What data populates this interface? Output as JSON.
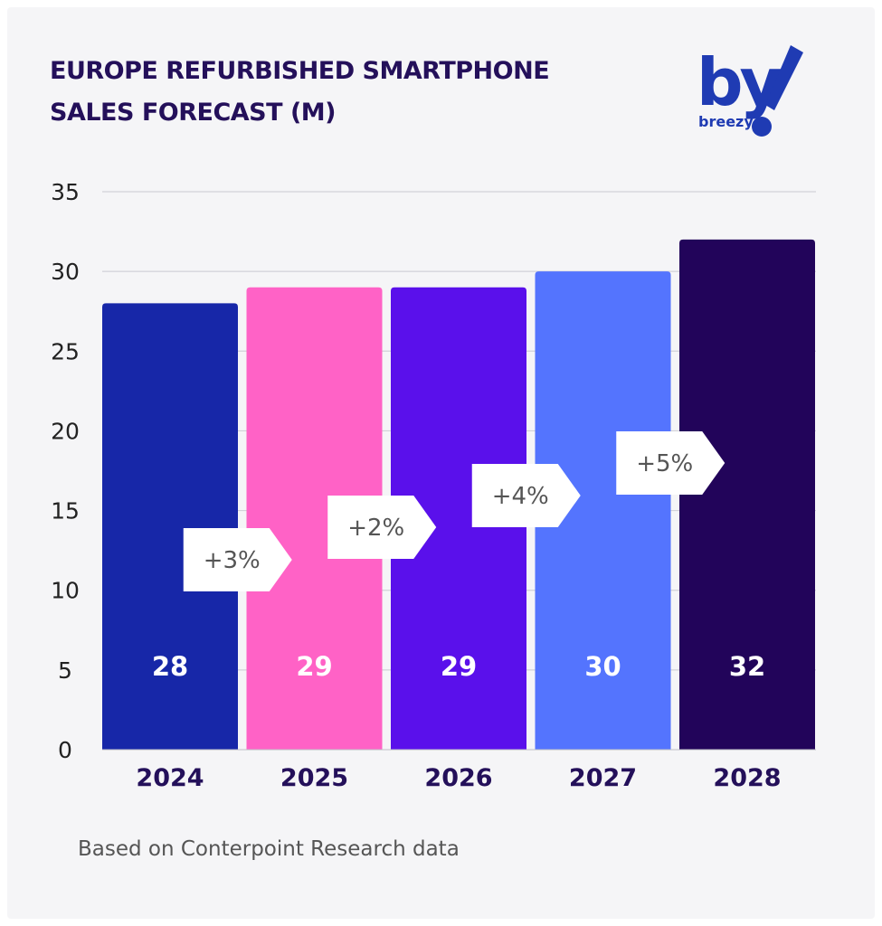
{
  "title_lines": [
    "EUROPE REFURBISHED SMARTPHONE",
    "SALES FORECAST (M)"
  ],
  "logo": {
    "mark": "by",
    "wordmark": "breezy",
    "color": "#1f3bb3"
  },
  "footnote": "Based on Conterpoint Research data",
  "chart_data": {
    "type": "bar",
    "categories": [
      "2024",
      "2025",
      "2026",
      "2027",
      "2028"
    ],
    "values": [
      28,
      29,
      29,
      30,
      32
    ],
    "data_labels": [
      "28",
      "29",
      "29",
      "30",
      "32"
    ],
    "bar_colors": [
      "#1727a8",
      "#ff62c6",
      "#5a10eb",
      "#5474fe",
      "#22045a"
    ],
    "ylim": [
      0,
      35
    ],
    "yticks": [
      0,
      5,
      10,
      15,
      20,
      25,
      30,
      35
    ],
    "grid": true,
    "growth_annotations": [
      {
        "label": "+3%",
        "value": 3,
        "between": [
          "2024",
          "2025"
        ]
      },
      {
        "label": "+2%",
        "value": 2,
        "between": [
          "2025",
          "2026"
        ]
      },
      {
        "label": "+4%",
        "value": 4,
        "between": [
          "2026",
          "2027"
        ]
      },
      {
        "label": "+5%",
        "value": 5,
        "between": [
          "2027",
          "2028"
        ]
      }
    ],
    "title": "",
    "xlabel": "",
    "ylabel": ""
  }
}
